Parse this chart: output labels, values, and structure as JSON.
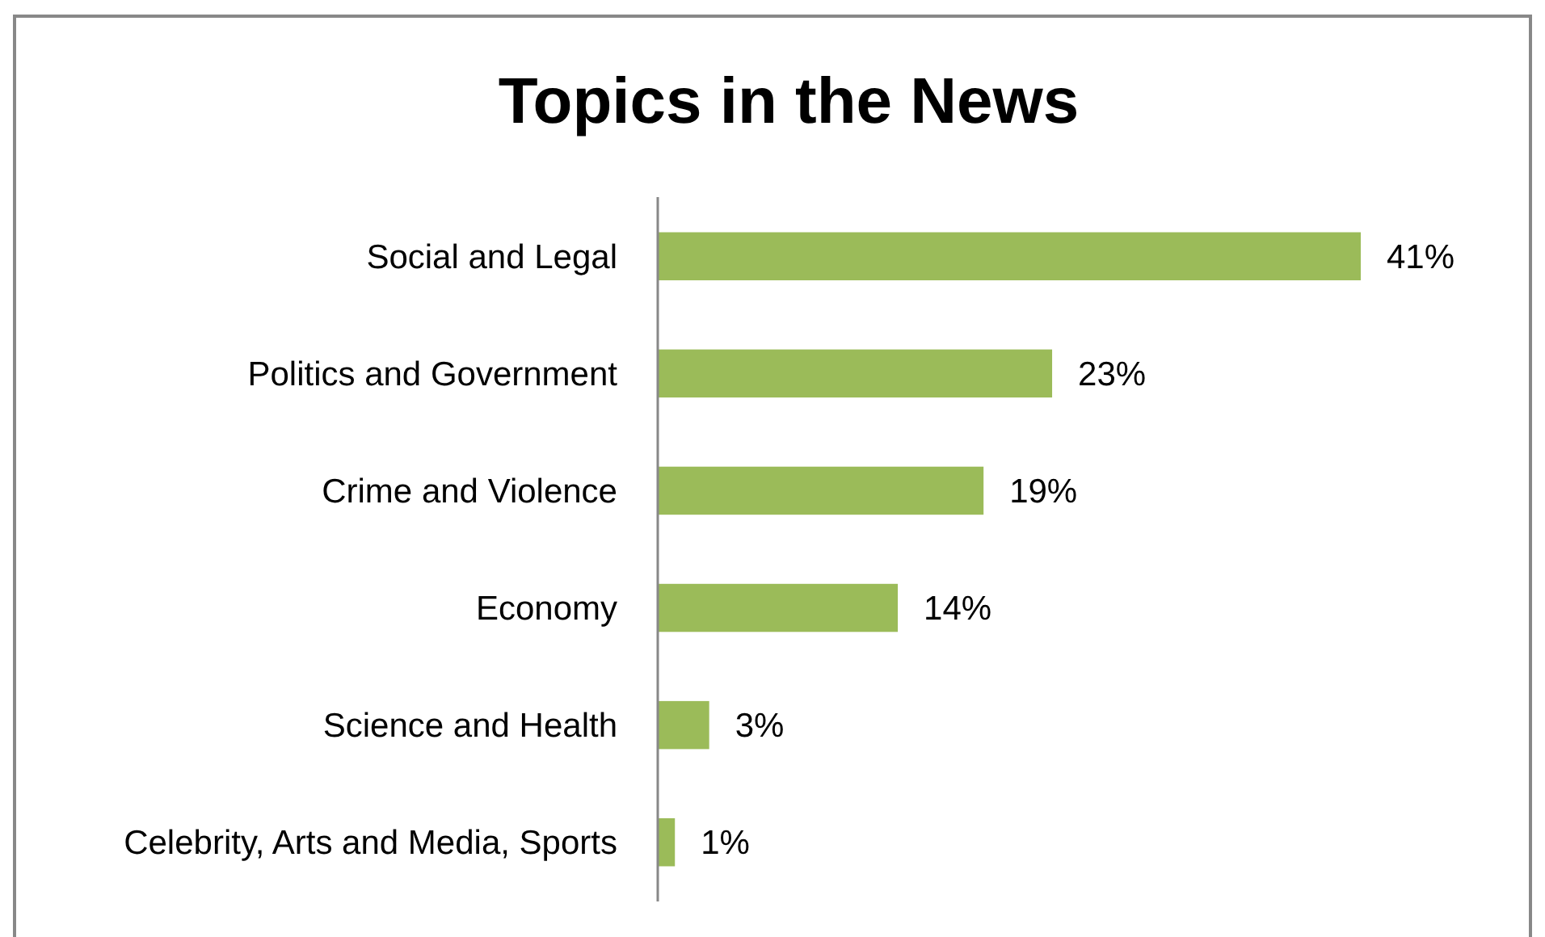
{
  "chart_data": {
    "type": "bar",
    "title": "Topics in the News",
    "orientation": "horizontal",
    "categories": [
      "Social and Legal",
      "Politics and Government",
      "Crime and Violence",
      "Economy",
      "Science and Health",
      "Celebrity, Arts and Media, Sports"
    ],
    "values": [
      41,
      23,
      19,
      14,
      3,
      1
    ],
    "value_labels": [
      "41%",
      "23%",
      "19%",
      "14%",
      "3%",
      "1%"
    ],
    "color": "#9bbb59",
    "tick_labels": "y"
  }
}
